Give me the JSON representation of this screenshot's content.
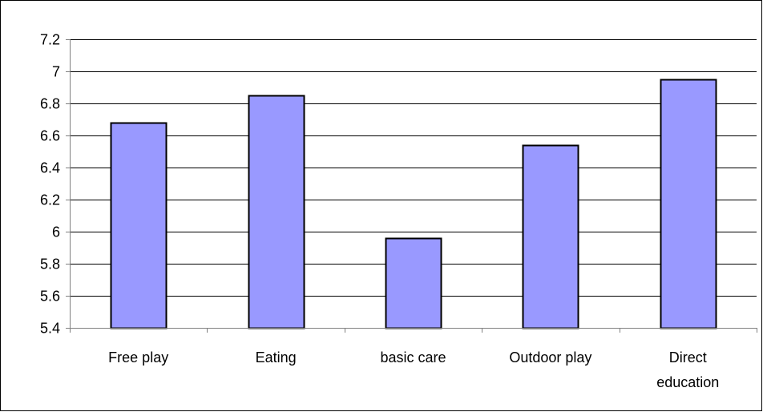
{
  "chart_data": {
    "type": "bar",
    "title": "",
    "xlabel": "",
    "ylabel": "",
    "categories": [
      [
        "Free play"
      ],
      [
        "Eating"
      ],
      [
        "basic care"
      ],
      [
        "Outdoor play"
      ],
      [
        "Direct",
        "education"
      ]
    ],
    "values": [
      6.68,
      6.85,
      5.96,
      6.54,
      6.95
    ],
    "ylim": [
      5.4,
      7.2
    ],
    "yticks": [
      "5.4",
      "5.6",
      "5.8",
      "6",
      "6.2",
      "6.4",
      "6.6",
      "6.8",
      "7",
      "7.2"
    ],
    "grid": true,
    "legend": "none",
    "colors": {
      "bar_fill": "#9999FF",
      "bar_stroke": "#000000",
      "gridline": "#000000",
      "axis": "#808080",
      "frame": "#000000",
      "background": "#FFFFFF"
    }
  }
}
